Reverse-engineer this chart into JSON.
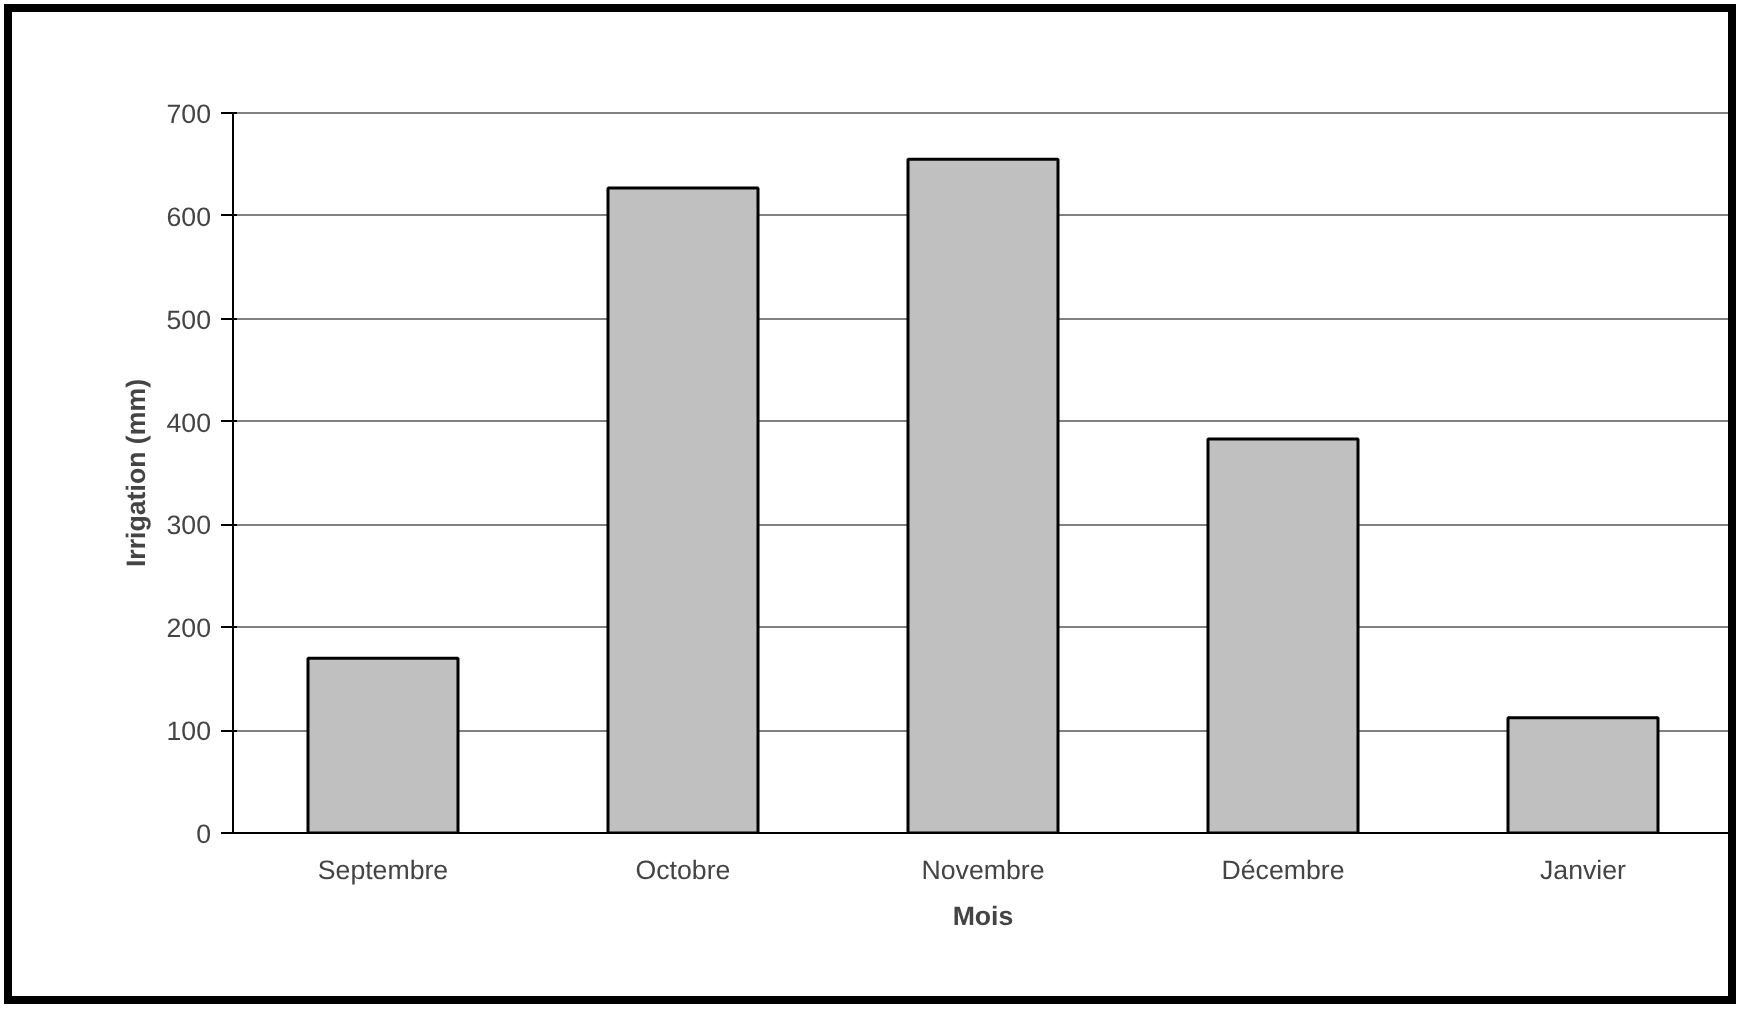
{
  "chart_data": {
    "type": "bar",
    "xlabel": "Mois",
    "ylabel": "Irrigation (mm)",
    "categories": [
      "Septembre",
      "Octobre",
      "Novembre",
      "Décembre",
      "Janvier"
    ],
    "values": [
      170,
      627,
      655,
      383,
      112
    ],
    "color": "#c0c0c0",
    "ylim": [
      0,
      700
    ],
    "yticks": [
      0,
      100,
      200,
      300,
      400,
      500,
      600,
      700
    ],
    "grid": "y"
  }
}
